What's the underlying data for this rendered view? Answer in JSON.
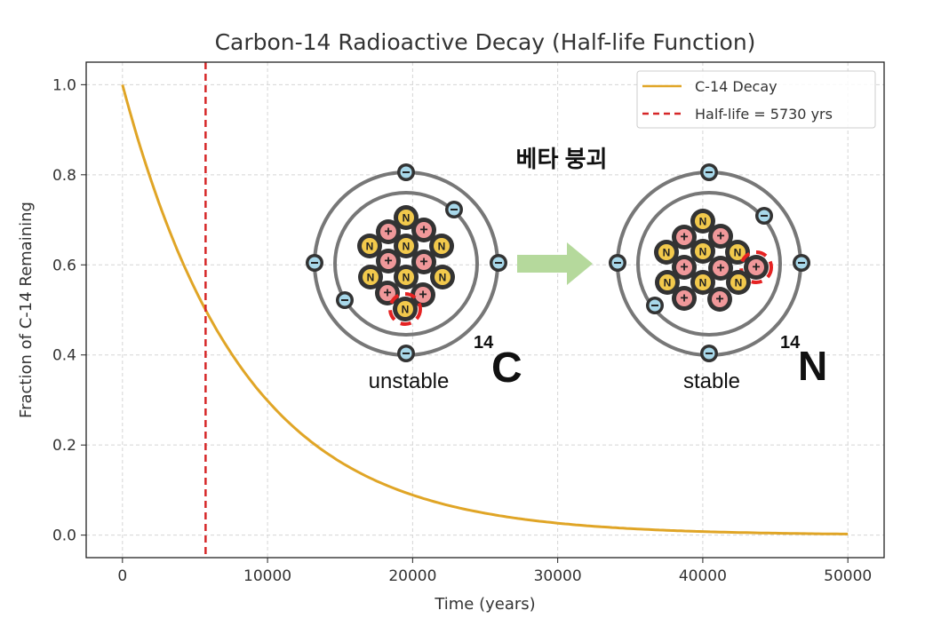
{
  "chart_data": {
    "type": "line",
    "title": "Carbon-14 Radioactive Decay (Half-life Function)",
    "xlabel": "Time (years)",
    "ylabel": "Fraction of C-14 Remaining",
    "xlim": [
      -2500,
      52500
    ],
    "ylim": [
      -0.05,
      1.05
    ],
    "xticks": [
      0,
      10000,
      20000,
      30000,
      40000,
      50000
    ],
    "xtick_labels": [
      "0",
      "10000",
      "20000",
      "30000",
      "40000",
      "50000"
    ],
    "yticks": [
      0.0,
      0.2,
      0.4,
      0.6,
      0.8,
      1.0
    ],
    "ytick_labels": [
      "0.0",
      "0.2",
      "0.4",
      "0.6",
      "0.8",
      "1.0"
    ],
    "grid": true,
    "legend_placement": "top-right",
    "series": [
      {
        "name": "C-14 Decay",
        "function": "0.5^(t/5730)",
        "x_range": [
          0,
          50000
        ],
        "color": "#e0a526",
        "style": "solid",
        "sample_points": [
          [
            0,
            1.0
          ],
          [
            5730,
            0.5
          ],
          [
            10000,
            0.298
          ],
          [
            20000,
            0.089
          ],
          [
            30000,
            0.027
          ],
          [
            40000,
            0.008
          ],
          [
            50000,
            0.002
          ]
        ]
      },
      {
        "name": "Half-life = 5730 yrs",
        "x": 5730,
        "color": "#d62728",
        "style": "dashed",
        "orientation": "vertical"
      }
    ]
  },
  "illustration": {
    "heading": "베타 붕괴",
    "left_atom": {
      "label": "unstable",
      "mass_number": "14",
      "symbol": "C"
    },
    "right_atom": {
      "label": "stable",
      "mass_number": "14",
      "symbol": "N"
    },
    "particle_glyphs": {
      "neutron": "N",
      "proton": "+",
      "electron": "−"
    },
    "colors": {
      "neutron": "#f2c94c",
      "proton": "#f0989a",
      "electron": "#a8d8ea",
      "ring": "#777777",
      "arrow": "#b5d99c",
      "highlight": "#e52222"
    }
  }
}
